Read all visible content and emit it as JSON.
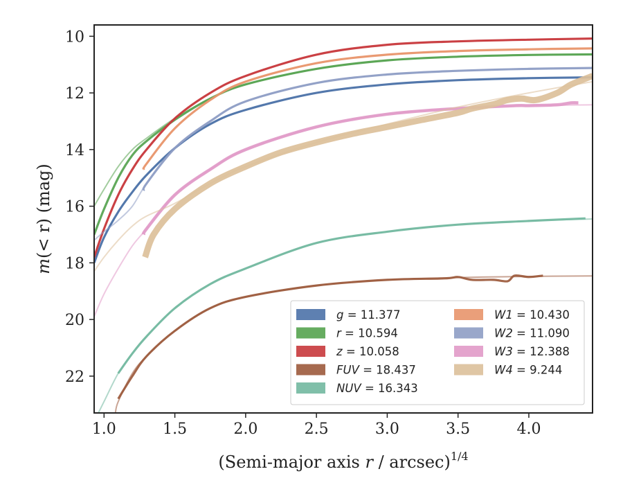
{
  "chart_data": {
    "type": "line",
    "xlabel": "(Semi-major axis r / arcsec)$^{1/4}$",
    "ylabel": "m(< r) (mag)",
    "xlabel_parts": {
      "main": "(Semi-major axis ",
      "var": "r",
      "rest": " / arcsec)",
      "sup": "1/4"
    },
    "ylabel_parts": {
      "pre": "m",
      "mid": "(< r)",
      "post": " (mag)"
    },
    "xlim": [
      0.93,
      4.45
    ],
    "ylim": [
      23.3,
      9.6
    ],
    "y_inverted": true,
    "grid": false,
    "legend_position": "lower-right",
    "x_ticks": [
      1.0,
      1.5,
      2.0,
      2.5,
      3.0,
      3.5,
      4.0
    ],
    "x_tick_labels": [
      "1.0",
      "1.5",
      "2.0",
      "2.5",
      "3.0",
      "3.5",
      "4.0"
    ],
    "y_ticks": [
      10,
      12,
      14,
      16,
      18,
      20,
      22
    ],
    "y_tick_labels": [
      "10",
      "12",
      "14",
      "16",
      "18",
      "20",
      "22"
    ],
    "series": [
      {
        "key": "g",
        "name": "g = 11.377",
        "label_var": "g",
        "label_val": "= 11.377",
        "color": "#4c72a8",
        "model": {
          "x": [
            0.93,
            1.0,
            1.1,
            1.2,
            1.3,
            1.5,
            1.75,
            2.0,
            2.5,
            3.0,
            3.5,
            4.0,
            4.45
          ],
          "y": [
            18.0,
            17.1,
            16.2,
            15.5,
            14.9,
            13.95,
            13.1,
            12.6,
            12.0,
            11.7,
            11.55,
            11.48,
            11.45
          ]
        },
        "data": {
          "x": [
            0.93,
            1.0,
            1.1,
            1.2,
            1.3,
            1.5,
            1.75,
            2.0,
            2.5,
            3.0,
            3.5,
            4.0,
            4.45
          ],
          "y": [
            18.0,
            17.1,
            16.2,
            15.5,
            14.9,
            13.95,
            13.1,
            12.6,
            12.0,
            11.7,
            11.55,
            11.48,
            11.45
          ]
        }
      },
      {
        "key": "r",
        "name": "r = 10.594",
        "label_var": "r",
        "label_val": "= 10.594",
        "color": "#55a34f",
        "model": {
          "x": [
            0.93,
            1.0,
            1.1,
            1.2,
            1.3,
            1.5,
            1.75,
            2.0,
            2.5,
            3.0,
            3.5,
            4.0,
            4.45
          ],
          "y": [
            16.0,
            15.4,
            14.6,
            14.0,
            13.6,
            12.9,
            12.2,
            11.7,
            11.15,
            10.85,
            10.72,
            10.66,
            10.64
          ]
        },
        "data": {
          "x": [
            0.93,
            1.0,
            1.1,
            1.2,
            1.3,
            1.5,
            1.75,
            2.0,
            2.5,
            3.0,
            3.5,
            4.0,
            4.45
          ],
          "y": [
            17.0,
            16.1,
            15.0,
            14.2,
            13.7,
            12.95,
            12.2,
            11.7,
            11.15,
            10.85,
            10.72,
            10.66,
            10.64
          ]
        }
      },
      {
        "key": "z",
        "name": "z = 10.058",
        "label_var": "z",
        "label_val": "= 10.058",
        "color": "#c8383c",
        "model": {
          "x": [
            0.93,
            1.0,
            1.1,
            1.2,
            1.3,
            1.5,
            1.75,
            2.0,
            2.5,
            3.0,
            3.5,
            4.0,
            4.45
          ],
          "y": [
            17.8,
            16.8,
            15.6,
            14.7,
            14.0,
            12.9,
            12.0,
            11.4,
            10.65,
            10.3,
            10.18,
            10.12,
            10.08
          ]
        },
        "data": {
          "x": [
            0.93,
            1.0,
            1.1,
            1.2,
            1.3,
            1.5,
            1.75,
            2.0,
            2.5,
            3.0,
            3.5,
            4.0,
            4.45
          ],
          "y": [
            17.8,
            16.8,
            15.6,
            14.7,
            14.0,
            12.9,
            12.0,
            11.4,
            10.65,
            10.3,
            10.18,
            10.12,
            10.08
          ]
        }
      },
      {
        "key": "FUV",
        "name": "FUV = 18.437",
        "label_var": "FUV",
        "label_val": "= 18.437",
        "color": "#9c5a3c",
        "model": {
          "x": [
            1.08,
            1.1,
            1.2,
            1.3,
            1.5,
            1.75,
            2.0,
            2.5,
            3.0,
            3.5,
            4.0,
            4.45
          ],
          "y": [
            23.3,
            22.9,
            21.9,
            21.3,
            20.4,
            19.6,
            19.2,
            18.8,
            18.6,
            18.52,
            18.48,
            18.46
          ]
        },
        "data": {
          "x": [
            1.1,
            1.2,
            1.3,
            1.5,
            1.75,
            2.0,
            2.5,
            3.0,
            3.4,
            3.5,
            3.6,
            3.75,
            3.85,
            3.9,
            4.0,
            4.1
          ],
          "y": [
            22.8,
            22.0,
            21.3,
            20.4,
            19.6,
            19.2,
            18.8,
            18.6,
            18.55,
            18.5,
            18.6,
            18.6,
            18.65,
            18.45,
            18.5,
            18.45
          ]
        }
      },
      {
        "key": "NUV",
        "name": "NUV = 16.343",
        "label_var": "NUV",
        "label_val": "= 16.343",
        "color": "#72b8a0",
        "model": {
          "x": [
            0.96,
            1.0,
            1.1,
            1.2,
            1.3,
            1.5,
            1.75,
            2.0,
            2.5,
            3.0,
            3.5,
            4.0,
            4.45
          ],
          "y": [
            23.3,
            22.9,
            21.9,
            21.2,
            20.6,
            19.6,
            18.75,
            18.2,
            17.3,
            16.9,
            16.65,
            16.52,
            16.45
          ]
        },
        "data": {
          "x": [
            1.1,
            1.2,
            1.3,
            1.5,
            1.75,
            2.0,
            2.5,
            3.0,
            3.5,
            4.0,
            4.4
          ],
          "y": [
            21.9,
            21.2,
            20.6,
            19.6,
            18.75,
            18.2,
            17.3,
            16.9,
            16.65,
            16.52,
            16.43
          ]
        }
      },
      {
        "key": "W1",
        "name": "W1 = 10.430",
        "label_var": "W1",
        "label_val": "= 10.430",
        "color": "#e8956b",
        "model": {
          "x": [
            1.28,
            1.3,
            1.5,
            1.75,
            2.0,
            2.5,
            3.0,
            3.5,
            4.0,
            4.45
          ],
          "y": [
            14.7,
            14.5,
            13.25,
            12.25,
            11.6,
            10.95,
            10.65,
            10.52,
            10.46,
            10.43
          ]
        },
        "data": {
          "x": [
            1.28,
            1.3,
            1.5,
            1.75,
            2.0,
            2.5,
            3.0,
            3.5,
            4.0,
            4.45
          ],
          "y": [
            14.7,
            14.5,
            13.25,
            12.25,
            11.6,
            10.95,
            10.65,
            10.52,
            10.46,
            10.43
          ]
        }
      },
      {
        "key": "W2",
        "name": "W2 = 11.090",
        "label_var": "W2",
        "label_val": "= 11.090",
        "color": "#8e9dc4",
        "model": {
          "x": [
            0.93,
            1.0,
            1.1,
            1.2,
            1.3,
            1.5,
            1.75,
            2.0,
            2.5,
            3.0,
            3.5,
            4.0,
            4.45
          ],
          "y": [
            17.2,
            16.9,
            16.5,
            16.0,
            15.2,
            13.95,
            13.0,
            12.3,
            11.65,
            11.35,
            11.22,
            11.15,
            11.12
          ]
        },
        "data": {
          "x": [
            1.28,
            1.3,
            1.5,
            1.75,
            2.0,
            2.5,
            3.0,
            3.5,
            4.0,
            4.45
          ],
          "y": [
            15.45,
            15.2,
            13.95,
            13.0,
            12.3,
            11.65,
            11.35,
            11.22,
            11.15,
            11.12
          ]
        }
      },
      {
        "key": "W3",
        "name": "W3 = 12.388",
        "label_var": "W3",
        "label_val": "= 12.388",
        "color": "#e19ac8",
        "model": {
          "x": [
            0.93,
            1.0,
            1.1,
            1.2,
            1.3,
            1.5,
            1.75,
            2.0,
            2.5,
            3.0,
            3.5,
            4.0,
            4.45
          ],
          "y": [
            19.9,
            19.1,
            18.2,
            17.4,
            16.8,
            15.6,
            14.7,
            14.0,
            13.2,
            12.75,
            12.55,
            12.45,
            12.42
          ]
        },
        "data": {
          "x": [
            1.28,
            1.3,
            1.5,
            1.75,
            2.0,
            2.5,
            3.0,
            3.5,
            3.9,
            4.0,
            4.2,
            4.3,
            4.35
          ],
          "y": [
            17.0,
            16.8,
            15.6,
            14.7,
            14.0,
            13.2,
            12.75,
            12.55,
            12.45,
            12.45,
            12.42,
            12.35,
            12.35
          ]
        }
      },
      {
        "key": "W4",
        "name": "W4 = 9.244",
        "label_var": "W4",
        "label_val": "= 9.244",
        "color": "#dcc09a",
        "model": {
          "x": [
            0.93,
            1.0,
            1.1,
            1.2,
            1.3,
            1.5,
            1.75,
            2.0,
            2.5,
            3.0,
            3.5,
            4.0,
            4.45
          ],
          "y": [
            18.3,
            17.8,
            17.2,
            16.7,
            16.35,
            15.9,
            15.2,
            14.6,
            13.75,
            13.1,
            12.5,
            12.0,
            11.6
          ]
        },
        "data": {
          "x": [
            1.29,
            1.35,
            1.5,
            1.75,
            2.0,
            2.25,
            2.5,
            2.75,
            3.0,
            3.25,
            3.5,
            3.6,
            3.75,
            3.85,
            3.95,
            4.05,
            4.2,
            4.3,
            4.45
          ],
          "y": [
            17.8,
            17.0,
            16.1,
            15.2,
            14.6,
            14.1,
            13.75,
            13.45,
            13.2,
            12.95,
            12.7,
            12.55,
            12.4,
            12.25,
            12.2,
            12.25,
            12.0,
            11.7,
            11.4
          ]
        }
      }
    ]
  }
}
